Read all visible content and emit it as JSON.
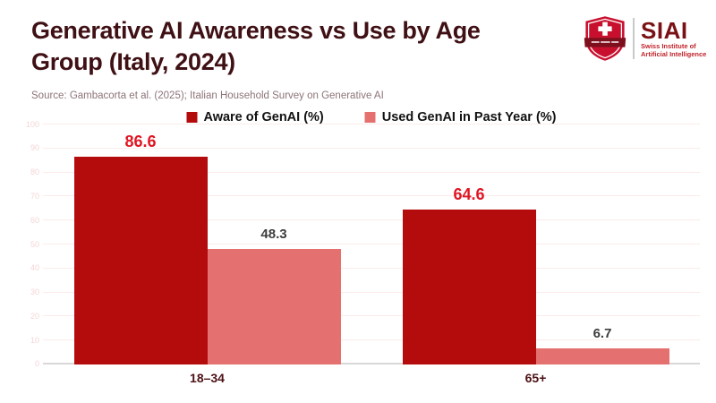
{
  "header": {
    "title_line1": "Generative AI Awareness vs Use by Age",
    "title_line2": "Group (Italy, 2024)",
    "logo": {
      "acronym": "SIAI",
      "subtitle_line1": "Swiss Institute of",
      "subtitle_line2": "Artificial Intelligence"
    }
  },
  "source": {
    "text": "Source: Gambacorta et al. (2025); Italian Household Survey on Generative AI"
  },
  "chart_data": {
    "type": "bar",
    "title": "Generative AI Awareness vs Use by Age Group (Italy, 2024)",
    "categories": [
      "18–34",
      "65+"
    ],
    "series": [
      {
        "name": "Aware of GenAI (%)",
        "values": [
          86.6,
          64.6
        ],
        "color": "#b40b0d",
        "value_label_color": "#e01523"
      },
      {
        "name": "Used GenAI in Past Year (%)",
        "values": [
          48.3,
          6.7
        ],
        "color": "#e57070",
        "value_label_color": "#3d3d3d"
      }
    ],
    "xlabel": "",
    "ylabel": "",
    "ylim": [
      0,
      100
    ],
    "ytick_step": 10,
    "grid": true,
    "legend_position": "top-center"
  },
  "colors": {
    "title": "#3f1014",
    "source_text": "#8d7478",
    "gridline": "#fcebea",
    "ytick_label": "#f5d6d6",
    "baseline": "#d9d9d9",
    "category_label": "#4d1115",
    "legend_text": "#111111",
    "logo_shield_red": "#c8102e",
    "logo_ribbon_dark_red": "#7e0f1d",
    "logo_acronym_color": "#7a1116",
    "logo_subtitle_color": "#c0232b"
  }
}
